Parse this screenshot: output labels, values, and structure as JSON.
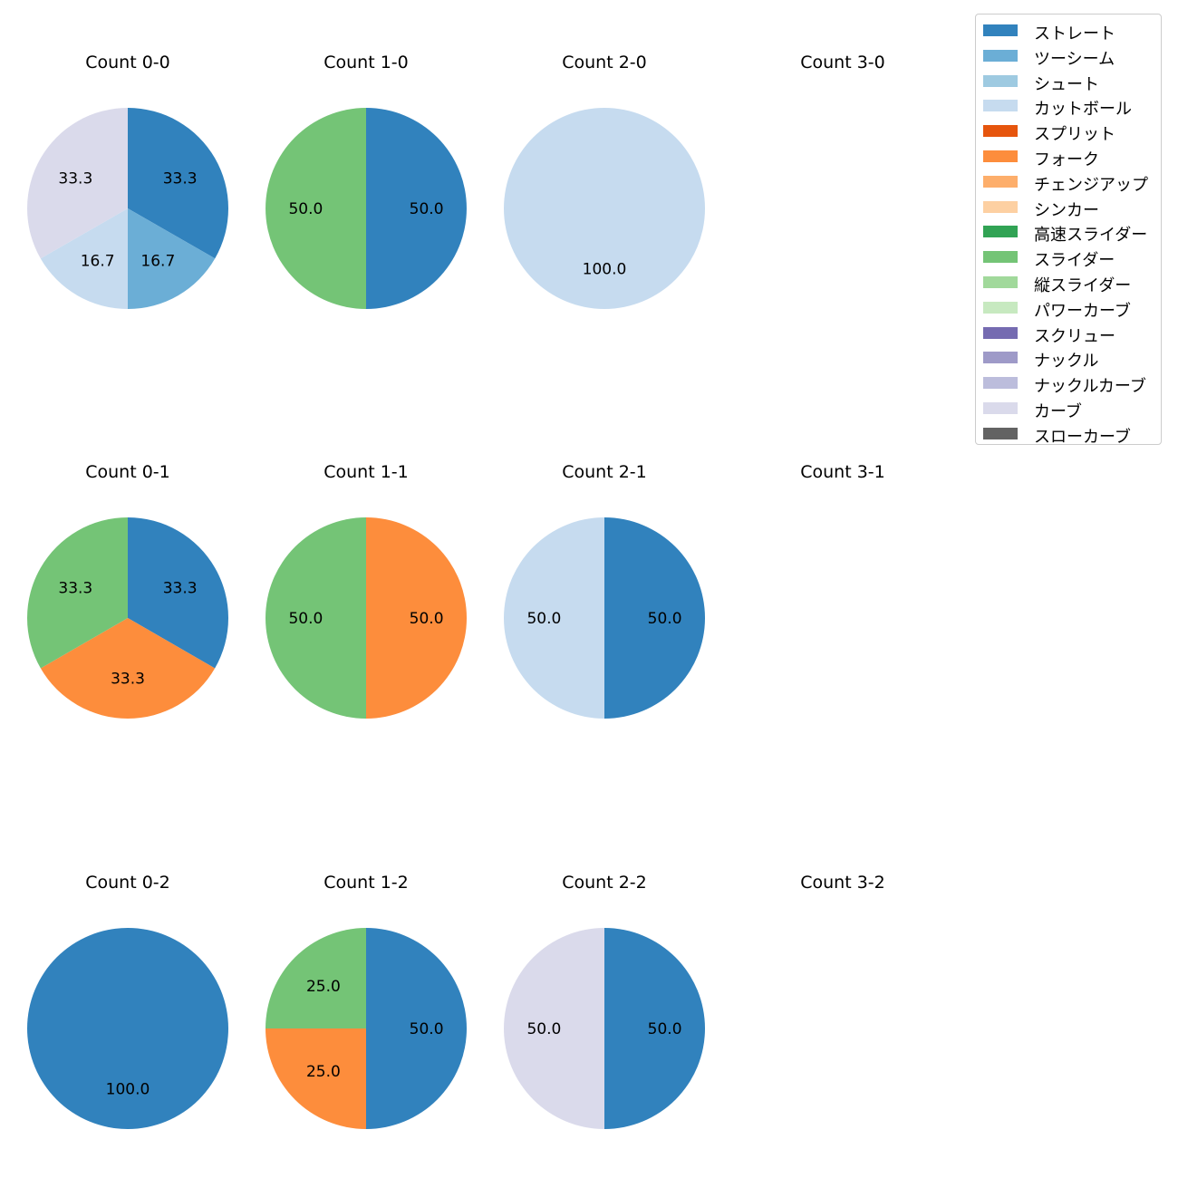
{
  "chart_data": {
    "type": "pie",
    "legend": {
      "placement": "top-right",
      "entries": [
        {
          "name": "ストレート",
          "color": "#3182bd"
        },
        {
          "name": "ツーシーム",
          "color": "#6baed6"
        },
        {
          "name": "シュート",
          "color": "#9ecae1"
        },
        {
          "name": "カットボール",
          "color": "#c6dbef"
        },
        {
          "name": "スプリット",
          "color": "#e6550d"
        },
        {
          "name": "フォーク",
          "color": "#fd8d3c"
        },
        {
          "name": "チェンジアップ",
          "color": "#fdae6b"
        },
        {
          "name": "シンカー",
          "color": "#fdd0a2"
        },
        {
          "name": "高速スライダー",
          "color": "#31a354"
        },
        {
          "name": "スライダー",
          "color": "#74c476"
        },
        {
          "name": "縦スライダー",
          "color": "#a1d99b"
        },
        {
          "name": "パワーカーブ",
          "color": "#c7e9c0"
        },
        {
          "name": "スクリュー",
          "color": "#756bb1"
        },
        {
          "name": "ナックル",
          "color": "#9e9ac8"
        },
        {
          "name": "ナックルカーブ",
          "color": "#bcbddc"
        },
        {
          "name": "カーブ",
          "color": "#dadaeb"
        },
        {
          "name": "スローカーブ",
          "color": "#636363"
        }
      ]
    },
    "pies": [
      {
        "title": "Count 0-0",
        "slices": [
          {
            "label": "ストレート",
            "value": 33.3,
            "text": "33.3"
          },
          {
            "label": "ツーシーム",
            "value": 16.7,
            "text": "16.7"
          },
          {
            "label": "カットボール",
            "value": 16.7,
            "text": "16.7"
          },
          {
            "label": "カーブ",
            "value": 33.3,
            "text": "33.3"
          }
        ]
      },
      {
        "title": "Count 1-0",
        "slices": [
          {
            "label": "ストレート",
            "value": 50.0,
            "text": "50.0"
          },
          {
            "label": "スライダー",
            "value": 50.0,
            "text": "50.0"
          }
        ]
      },
      {
        "title": "Count 2-0",
        "slices": [
          {
            "label": "カットボール",
            "value": 100.0,
            "text": "100.0"
          }
        ]
      },
      {
        "title": "Count 3-0",
        "slices": []
      },
      {
        "title": "Count 0-1",
        "slices": [
          {
            "label": "ストレート",
            "value": 33.3,
            "text": "33.3"
          },
          {
            "label": "フォーク",
            "value": 33.3,
            "text": "33.3"
          },
          {
            "label": "スライダー",
            "value": 33.3,
            "text": "33.3"
          }
        ]
      },
      {
        "title": "Count 1-1",
        "slices": [
          {
            "label": "フォーク",
            "value": 50.0,
            "text": "50.0"
          },
          {
            "label": "スライダー",
            "value": 50.0,
            "text": "50.0"
          }
        ]
      },
      {
        "title": "Count 2-1",
        "slices": [
          {
            "label": "ストレート",
            "value": 50.0,
            "text": "50.0"
          },
          {
            "label": "カットボール",
            "value": 50.0,
            "text": "50.0"
          }
        ]
      },
      {
        "title": "Count 3-1",
        "slices": []
      },
      {
        "title": "Count 0-2",
        "slices": [
          {
            "label": "ストレート",
            "value": 100.0,
            "text": "100.0"
          }
        ]
      },
      {
        "title": "Count 1-2",
        "slices": [
          {
            "label": "ストレート",
            "value": 50.0,
            "text": "50.0"
          },
          {
            "label": "フォーク",
            "value": 25.0,
            "text": "25.0"
          },
          {
            "label": "スライダー",
            "value": 25.0,
            "text": "25.0"
          }
        ]
      },
      {
        "title": "Count 2-2",
        "slices": [
          {
            "label": "ストレート",
            "value": 50.0,
            "text": "50.0"
          },
          {
            "label": "カーブ",
            "value": 50.0,
            "text": "50.0"
          }
        ]
      },
      {
        "title": "Count 3-2",
        "slices": []
      }
    ]
  }
}
